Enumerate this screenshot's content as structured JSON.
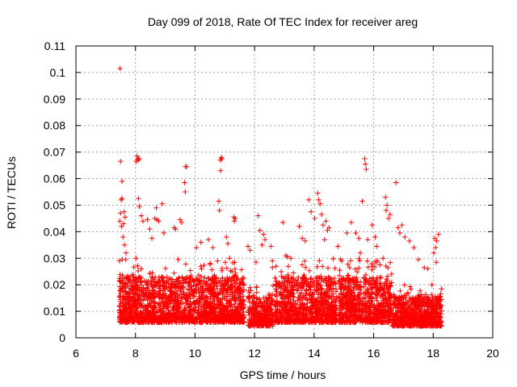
{
  "colors": {
    "marker": "#ff0000",
    "grid": "#a0a0a0",
    "axis": "#000000",
    "background": "#ffffff"
  },
  "chart_data": {
    "type": "scatter",
    "title": "Day 099 of 2018, Rate Of TEC Index for receiver areg",
    "xlabel": "GPS time / hours",
    "ylabel": "ROTI / TECUs",
    "xlim": [
      6,
      20
    ],
    "ylim": [
      0,
      0.11
    ],
    "xticks": [
      6,
      8,
      10,
      12,
      14,
      16,
      18,
      20
    ],
    "yticks": [
      0,
      0.01,
      0.02,
      0.03,
      0.04,
      0.05,
      0.06,
      0.07,
      0.08,
      0.09,
      0.1,
      0.11
    ],
    "xtick_labels": [
      "6",
      "8",
      "10",
      "12",
      "14",
      "16",
      "18",
      "20"
    ],
    "ytick_labels": [
      "0",
      "0.01",
      "0.02",
      "0.03",
      "0.04",
      "0.05",
      "0.06",
      "0.07",
      "0.08",
      "0.09",
      "0.1",
      "0.11"
    ],
    "grid": true,
    "marker": "+",
    "series": [
      {
        "name": "ROTI",
        "points": [
          [
            7.48,
            0.1015
          ],
          [
            7.5,
            0.0665
          ],
          [
            7.55,
            0.059
          ],
          [
            7.55,
            0.0525
          ],
          [
            7.52,
            0.052
          ],
          [
            7.5,
            0.047
          ],
          [
            7.47,
            0.044
          ],
          [
            7.53,
            0.042
          ],
          [
            7.62,
            0.0475
          ],
          [
            7.65,
            0.0455
          ],
          [
            7.6,
            0.043
          ],
          [
            7.58,
            0.038
          ],
          [
            7.63,
            0.035
          ],
          [
            7.68,
            0.032
          ],
          [
            8.05,
            0.0685
          ],
          [
            8.08,
            0.0675
          ],
          [
            8.1,
            0.067
          ],
          [
            8.02,
            0.0665
          ],
          [
            8.12,
            0.0675
          ],
          [
            8.1,
            0.0525
          ],
          [
            8.13,
            0.0495
          ],
          [
            8.2,
            0.046
          ],
          [
            8.25,
            0.044
          ],
          [
            8.4,
            0.0445
          ],
          [
            8.48,
            0.041
          ],
          [
            8.55,
            0.0375
          ],
          [
            8.65,
            0.045
          ],
          [
            8.7,
            0.049
          ],
          [
            8.72,
            0.0445
          ],
          [
            8.78,
            0.044
          ],
          [
            8.9,
            0.0505
          ],
          [
            8.95,
            0.0395
          ],
          [
            9.3,
            0.0415
          ],
          [
            9.35,
            0.041
          ],
          [
            9.5,
            0.0445
          ],
          [
            9.55,
            0.0435
          ],
          [
            9.68,
            0.0645
          ],
          [
            9.72,
            0.0645
          ],
          [
            9.65,
            0.0585
          ],
          [
            9.67,
            0.055
          ],
          [
            10.05,
            0.034
          ],
          [
            10.2,
            0.036
          ],
          [
            10.45,
            0.037
          ],
          [
            10.6,
            0.034
          ],
          [
            10.88,
            0.068
          ],
          [
            10.9,
            0.0675
          ],
          [
            10.85,
            0.067
          ],
          [
            10.86,
            0.063
          ],
          [
            10.8,
            0.0515
          ],
          [
            10.82,
            0.048
          ],
          [
            11.05,
            0.038
          ],
          [
            11.1,
            0.0355
          ],
          [
            11.3,
            0.0455
          ],
          [
            11.35,
            0.045
          ],
          [
            11.32,
            0.044
          ],
          [
            11.78,
            0.0345
          ],
          [
            11.85,
            0.033
          ],
          [
            12.05,
            0.0285
          ],
          [
            12.12,
            0.046
          ],
          [
            12.18,
            0.0405
          ],
          [
            12.3,
            0.039
          ],
          [
            12.35,
            0.037
          ],
          [
            12.25,
            0.035
          ],
          [
            12.55,
            0.0345
          ],
          [
            12.6,
            0.029
          ],
          [
            12.6,
            0.0265
          ],
          [
            12.95,
            0.0435
          ],
          [
            13.05,
            0.031
          ],
          [
            13.1,
            0.0305
          ],
          [
            13.5,
            0.042
          ],
          [
            13.6,
            0.0375
          ],
          [
            13.7,
            0.0365
          ],
          [
            13.82,
            0.052
          ],
          [
            13.9,
            0.0475
          ],
          [
            14.02,
            0.045
          ],
          [
            14.12,
            0.0545
          ],
          [
            14.15,
            0.052
          ],
          [
            14.2,
            0.0505
          ],
          [
            14.25,
            0.0465
          ],
          [
            14.3,
            0.0425
          ],
          [
            14.4,
            0.044
          ],
          [
            14.45,
            0.0405
          ],
          [
            14.5,
            0.0415
          ],
          [
            14.35,
            0.037
          ],
          [
            14.8,
            0.0345
          ],
          [
            15.1,
            0.0395
          ],
          [
            15.25,
            0.0435
          ],
          [
            15.4,
            0.0395
          ],
          [
            15.5,
            0.0375
          ],
          [
            15.55,
            0.032
          ],
          [
            15.7,
            0.0675
          ],
          [
            15.72,
            0.0655
          ],
          [
            15.75,
            0.0635
          ],
          [
            15.62,
            0.0515
          ],
          [
            15.8,
            0.037
          ],
          [
            15.95,
            0.0425
          ],
          [
            16.05,
            0.038
          ],
          [
            16.1,
            0.0345
          ],
          [
            16.4,
            0.053
          ],
          [
            16.45,
            0.05
          ],
          [
            16.42,
            0.048
          ],
          [
            16.5,
            0.045
          ],
          [
            16.55,
            0.0465
          ],
          [
            16.75,
            0.0585
          ],
          [
            16.82,
            0.0415
          ],
          [
            16.88,
            0.0395
          ],
          [
            16.95,
            0.0425
          ],
          [
            17.05,
            0.038
          ],
          [
            17.2,
            0.0365
          ],
          [
            17.35,
            0.034
          ],
          [
            17.5,
            0.0295
          ],
          [
            17.7,
            0.0265
          ],
          [
            17.82,
            0.026
          ],
          [
            18.05,
            0.0375
          ],
          [
            18.12,
            0.0365
          ],
          [
            18.18,
            0.039
          ],
          [
            18.08,
            0.034
          ],
          [
            18.02,
            0.032
          ],
          [
            18.1,
            0.0285
          ]
        ],
        "dense_bands": [
          {
            "x_range": [
              7.45,
              11.65
            ],
            "y_range": [
              0.002,
              0.03
            ]
          },
          {
            "x_range": [
              11.78,
              12.62
            ],
            "y_range": [
              0.002,
              0.02
            ]
          },
          {
            "x_range": [
              12.68,
              14.75
            ],
            "y_range": [
              0.002,
              0.03
            ]
          },
          {
            "x_range": [
              14.82,
              16.62
            ],
            "y_range": [
              0.002,
              0.03
            ]
          },
          {
            "x_range": [
              16.62,
              18.28
            ],
            "y_range": [
              0.002,
              0.02
            ]
          }
        ]
      }
    ]
  }
}
